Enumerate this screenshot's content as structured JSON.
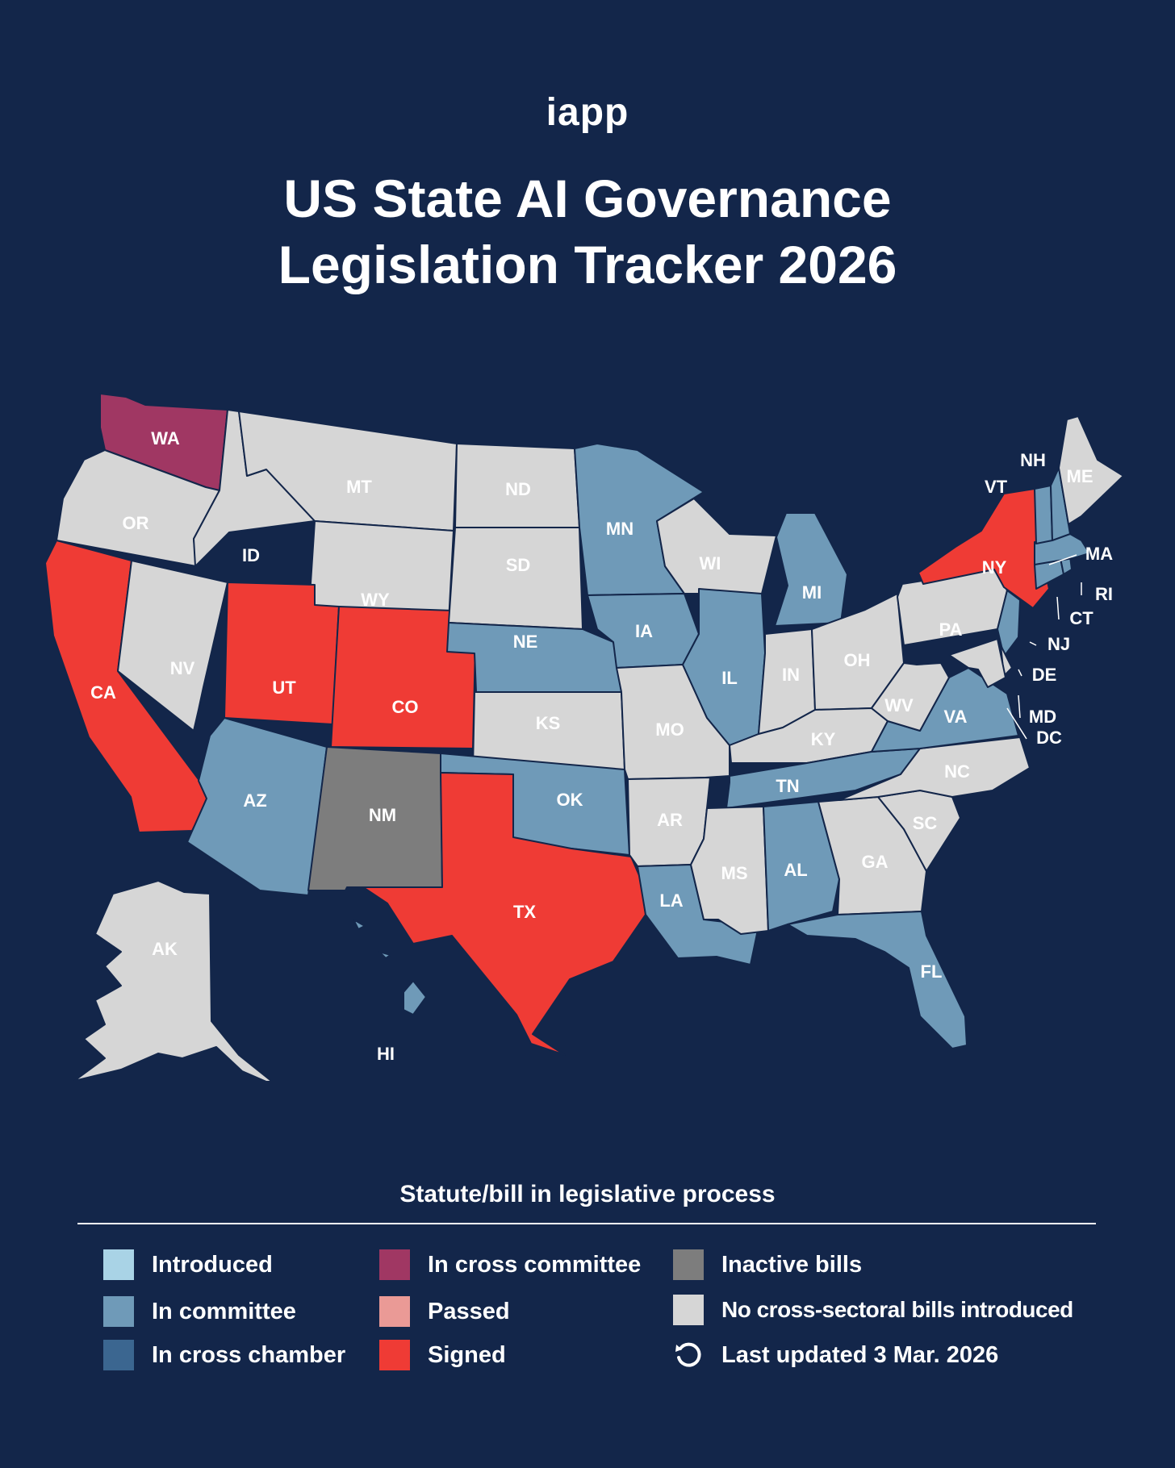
{
  "brand": "iapp",
  "title_line1": "US State AI Governance",
  "title_line2": "Legislation Tracker 2026",
  "legend": {
    "title": "Statute/bill in legislative process",
    "items": [
      {
        "label": "Introduced",
        "color": "#a9d3e6"
      },
      {
        "label": "In committee",
        "color": "#6f9ab8"
      },
      {
        "label": "In cross chamber",
        "color": "#3b6690"
      },
      {
        "label": "In cross committee",
        "color": "#a03763"
      },
      {
        "label": "Passed",
        "color": "#ea9a96"
      },
      {
        "label": "Signed",
        "color": "#ef3b35"
      },
      {
        "label": "Inactive bills",
        "color": "#7d7d7d"
      },
      {
        "label": "No cross-sectoral bills introduced",
        "color": "#d6d6d6"
      }
    ],
    "updated": "Last updated 3 Mar. 2026",
    "updated_icon": "refresh-icon"
  },
  "states": {
    "WA": "In cross committee",
    "OR": "No cross-sectoral bills introduced",
    "CA": "Signed",
    "NV": "No cross-sectoral bills introduced",
    "ID": "No cross-sectoral bills introduced",
    "MT": "No cross-sectoral bills introduced",
    "WY": "No cross-sectoral bills introduced",
    "UT": "Signed",
    "CO": "Signed",
    "AZ": "In committee",
    "NM": "Inactive bills",
    "ND": "No cross-sectoral bills introduced",
    "SD": "No cross-sectoral bills introduced",
    "NE": "In committee",
    "KS": "No cross-sectoral bills introduced",
    "OK": "In committee",
    "TX": "Signed",
    "MN": "In committee",
    "IA": "In committee",
    "MO": "No cross-sectoral bills introduced",
    "AR": "No cross-sectoral bills introduced",
    "LA": "In committee",
    "WI": "No cross-sectoral bills introduced",
    "IL": "In committee",
    "MI": "In committee",
    "IN": "No cross-sectoral bills introduced",
    "OH": "No cross-sectoral bills introduced",
    "KY": "No cross-sectoral bills introduced",
    "TN": "In committee",
    "MS": "No cross-sectoral bills introduced",
    "AL": "In committee",
    "GA": "No cross-sectoral bills introduced",
    "FL": "In committee",
    "SC": "No cross-sectoral bills introduced",
    "NC": "No cross-sectoral bills introduced",
    "VA": "In committee",
    "WV": "No cross-sectoral bills introduced",
    "PA": "No cross-sectoral bills introduced",
    "NY": "Signed",
    "NJ": "In committee",
    "DE": "No cross-sectoral bills introduced",
    "MD": "No cross-sectoral bills introduced",
    "DC": "No cross-sectoral bills introduced",
    "CT": "In committee",
    "RI": "In committee",
    "MA": "In committee",
    "VT": "In committee",
    "NH": "In committee",
    "ME": "No cross-sectoral bills introduced",
    "AK": "No cross-sectoral bills introduced",
    "HI": "In committee"
  }
}
